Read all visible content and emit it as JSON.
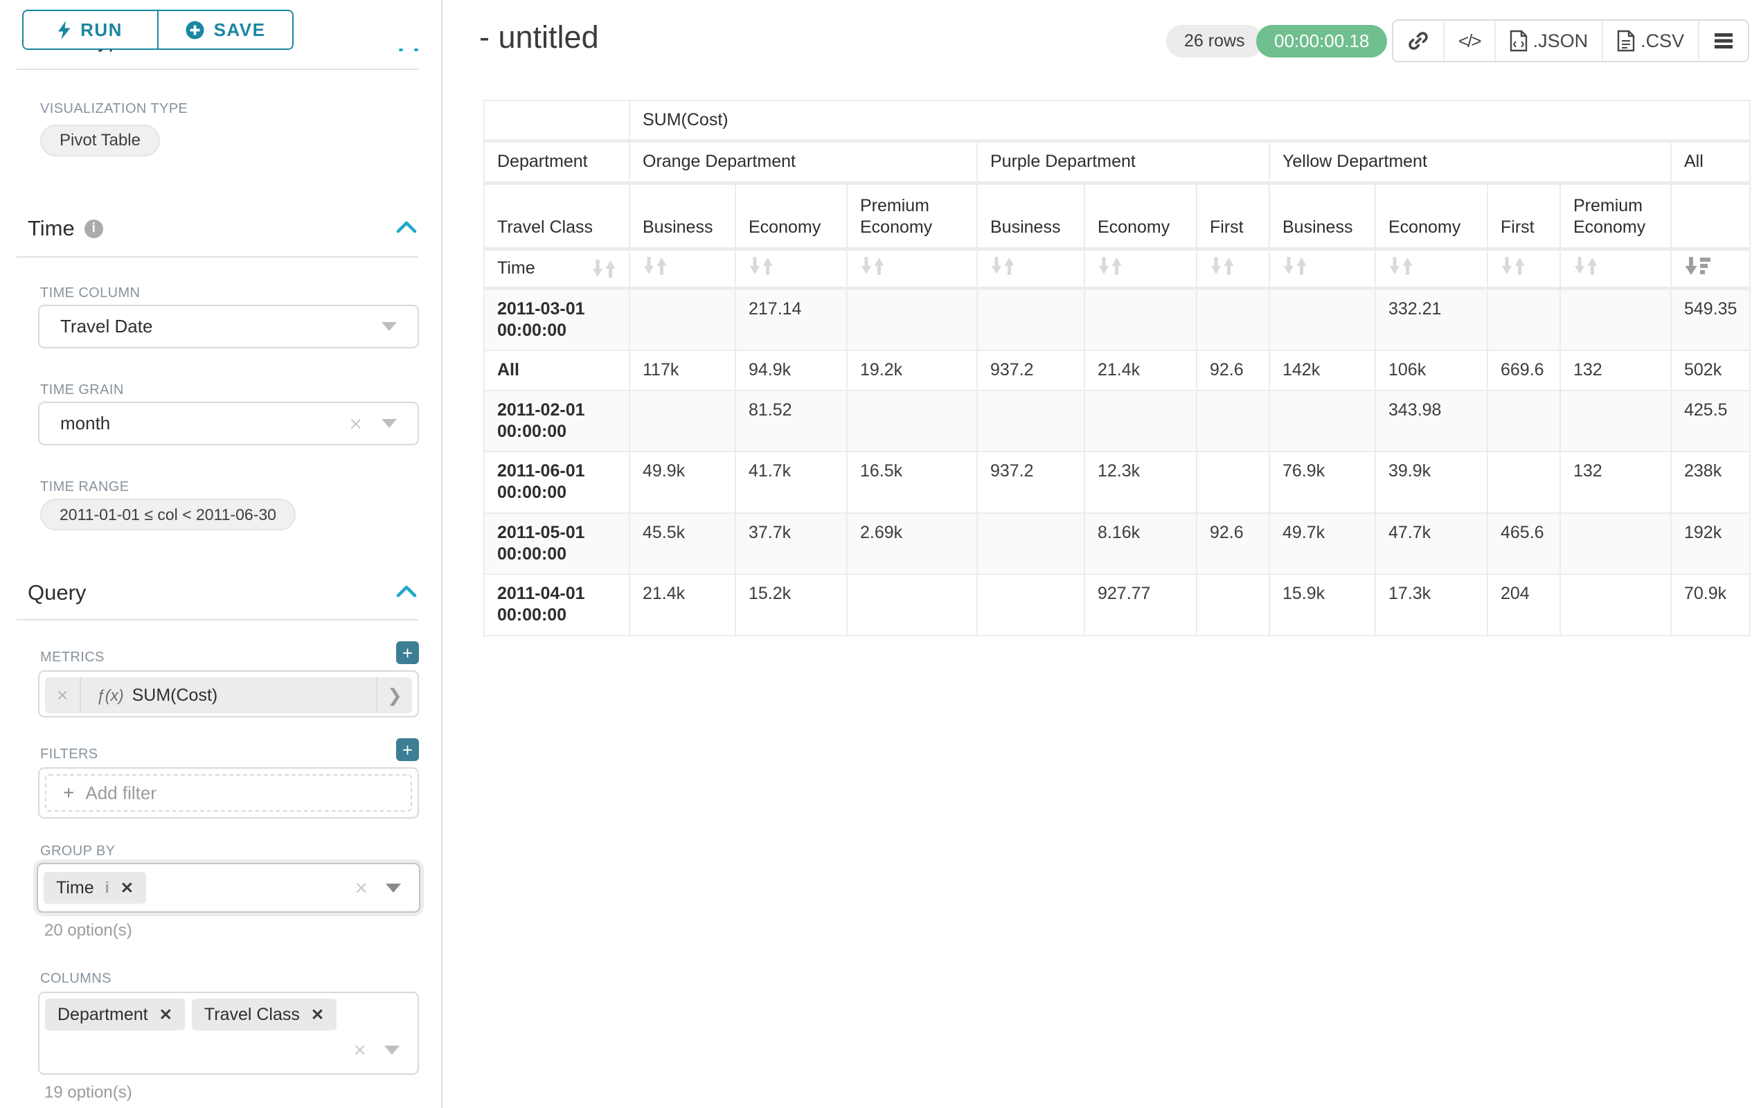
{
  "colors": {
    "accent_teal": "#20a7c9",
    "button_teal": "#1a86a2",
    "plus_button_teal": "#3d7e94",
    "timer_green": "#6fbf8f",
    "label_gray": "#87939e",
    "stripe_gray": "#fafafa"
  },
  "sidebar": {
    "run_label": "RUN",
    "save_label": "SAVE",
    "chart_type_header": "Chart Type",
    "viz": {
      "label": "VISUALIZATION TYPE",
      "value": "Pivot Table"
    },
    "time": {
      "title": "Time",
      "time_column": {
        "label": "TIME COLUMN",
        "value": "Travel Date"
      },
      "time_grain": {
        "label": "TIME GRAIN",
        "value": "month"
      },
      "time_range": {
        "label": "TIME RANGE",
        "value": "2011-01-01 ≤ col < 2011-06-30"
      }
    },
    "query": {
      "title": "Query",
      "metrics": {
        "label": "METRICS",
        "fx": "ƒ(x)",
        "metric_name": "SUM(Cost)"
      },
      "filters": {
        "label": "FILTERS",
        "placeholder": "Add filter"
      },
      "group_by": {
        "label": "GROUP BY",
        "chips": [
          "Time"
        ],
        "hint": "20 option(s)"
      },
      "columns": {
        "label": "COLUMNS",
        "chips": [
          "Department",
          "Travel Class"
        ],
        "hint": "19 option(s)"
      }
    }
  },
  "header": {
    "title": "- untitled",
    "rows_badge": "26 rows",
    "timer": "00:00:00.18",
    "export_json_label": ".JSON",
    "export_csv_label": ".CSV"
  },
  "pivot_table": {
    "metric_label": "SUM(Cost)",
    "row_group_label": "Department",
    "row_subgroup_label": "Travel Class",
    "time_label": "Time",
    "col_groups": [
      {
        "label": "Orange Department",
        "classes": [
          "Business",
          "Economy",
          "Premium Economy"
        ]
      },
      {
        "label": "Purple Department",
        "classes": [
          "Business",
          "Economy",
          "First"
        ]
      },
      {
        "label": "Yellow Department",
        "classes": [
          "Business",
          "Economy",
          "First",
          "Premium Economy"
        ]
      },
      {
        "label": "All",
        "classes": [
          ""
        ]
      }
    ],
    "sort": {
      "column": "All",
      "col_index": 10,
      "direction": "desc"
    },
    "rows": [
      {
        "label": "2011-03-01 00:00:00",
        "values": [
          "",
          "217.14",
          "",
          "",
          "",
          "",
          "",
          "332.21",
          "",
          "",
          "549.35"
        ]
      },
      {
        "label": "All",
        "values": [
          "117k",
          "94.9k",
          "19.2k",
          "937.2",
          "21.4k",
          "92.6",
          "142k",
          "106k",
          "669.6",
          "132",
          "502k"
        ]
      },
      {
        "label": "2011-02-01 00:00:00",
        "values": [
          "",
          "81.52",
          "",
          "",
          "",
          "",
          "",
          "343.98",
          "",
          "",
          "425.5"
        ]
      },
      {
        "label": "2011-06-01 00:00:00",
        "values": [
          "49.9k",
          "41.7k",
          "16.5k",
          "937.2",
          "12.3k",
          "",
          "76.9k",
          "39.9k",
          "",
          "132",
          "238k"
        ]
      },
      {
        "label": "2011-05-01 00:00:00",
        "values": [
          "45.5k",
          "37.7k",
          "2.69k",
          "",
          "8.16k",
          "92.6",
          "49.7k",
          "47.7k",
          "465.6",
          "",
          "192k"
        ]
      },
      {
        "label": "2011-04-01 00:00:00",
        "values": [
          "21.4k",
          "15.2k",
          "",
          "",
          "927.77",
          "",
          "15.9k",
          "17.3k",
          "204",
          "",
          "70.9k"
        ]
      }
    ]
  }
}
